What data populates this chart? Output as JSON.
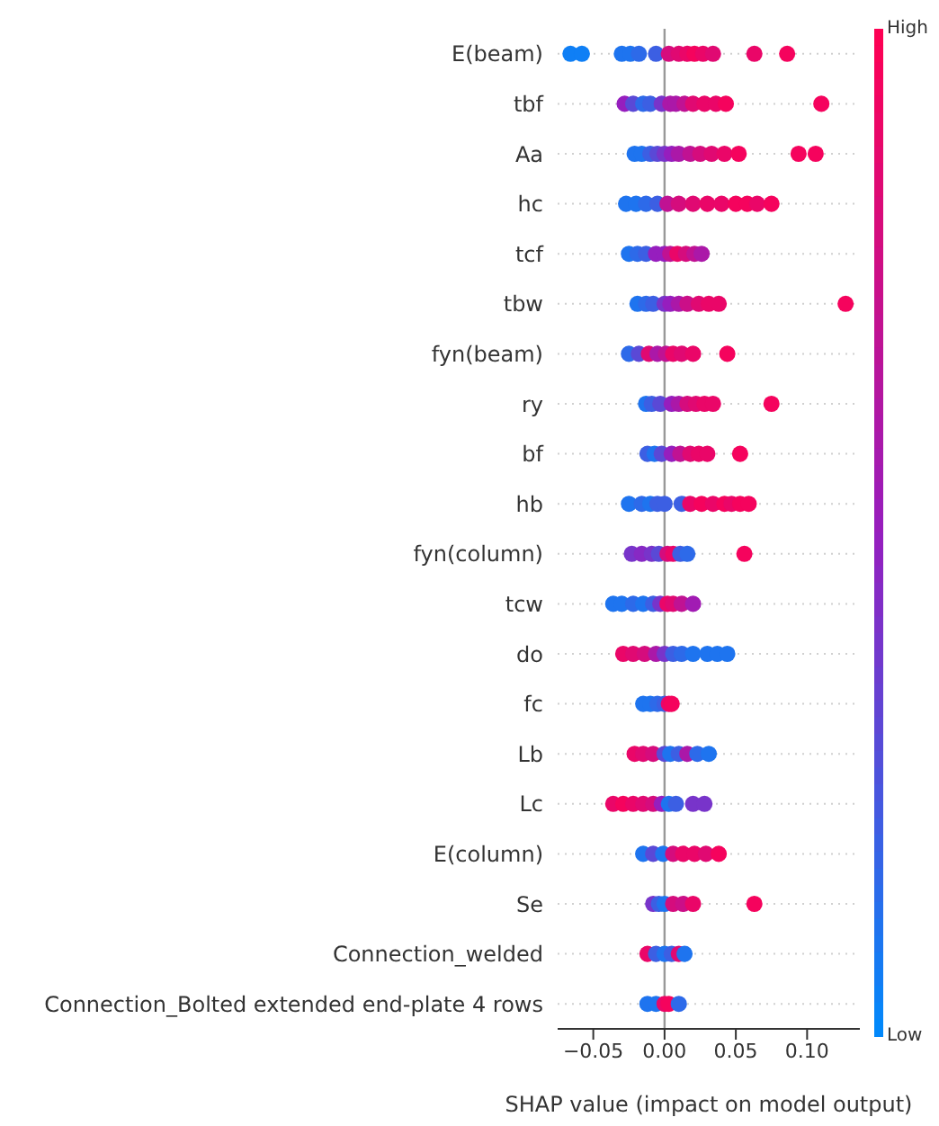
{
  "chart_data": {
    "type": "scatter",
    "orientation": "horizontal",
    "xlabel": "SHAP value (impact on model output)",
    "categories": [
      "E(beam)",
      "tbf",
      "Aa",
      "hc",
      "tcf",
      "tbw",
      "fyn(beam)",
      "ry",
      "bf",
      "hb",
      "fyn(column)",
      "tcw",
      "do",
      "fc",
      "Lb",
      "Lc",
      "E(column)",
      "Se",
      "Connection_welded",
      "Connection_Bolted extended end-plate 4 rows"
    ],
    "xlim": [
      -0.075,
      0.137
    ],
    "xticks": [
      {
        "value": -0.05,
        "label": "−0.05"
      },
      {
        "value": 0,
        "label": "0.00"
      },
      {
        "value": 0.05,
        "label": "0.05"
      },
      {
        "value": 0.1,
        "label": "0.10"
      }
    ],
    "clim": [
      0,
      1
    ],
    "cticks": [
      {
        "value": 0,
        "label": "Low"
      },
      {
        "value": 1,
        "label": "High"
      }
    ],
    "grid": "y",
    "marker": "circle",
    "ref_lines": [
      {
        "axis": "x",
        "value": 0,
        "color": "#999999"
      }
    ],
    "series": [
      {
        "x": [
          "E(beam)",
          "E(beam)",
          "E(beam)",
          "E(beam)",
          "E(beam)",
          "E(beam)",
          "E(beam)",
          "E(beam)",
          "E(beam)",
          "E(beam)",
          "E(beam)",
          "E(beam)",
          "E(beam)",
          "E(beam)",
          "tbf",
          "tbf",
          "tbf",
          "tbf",
          "tbf",
          "tbf",
          "tbf",
          "tbf",
          "tbf",
          "tbf",
          "tbf",
          "tbf",
          "tbf",
          "Aa",
          "Aa",
          "Aa",
          "Aa",
          "Aa",
          "Aa",
          "Aa",
          "Aa",
          "Aa",
          "Aa",
          "Aa",
          "Aa",
          "Aa",
          "Aa",
          "hc",
          "hc",
          "hc",
          "hc",
          "hc",
          "hc",
          "hc",
          "hc",
          "hc",
          "hc",
          "hc",
          "hc",
          "hc",
          "tcf",
          "tcf",
          "tcf",
          "tcf",
          "tcf",
          "tcf",
          "tcf",
          "tcf",
          "tcf",
          "tcf",
          "tbw",
          "tbw",
          "tbw",
          "tbw",
          "tbw",
          "tbw",
          "tbw",
          "tbw",
          "tbw",
          "tbw",
          "tbw",
          "fyn(beam)",
          "fyn(beam)",
          "fyn(beam)",
          "fyn(beam)",
          "fyn(beam)",
          "fyn(beam)",
          "fyn(beam)",
          "fyn(beam)",
          "fyn(beam)",
          "ry",
          "ry",
          "ry",
          "ry",
          "ry",
          "ry",
          "ry",
          "ry",
          "ry",
          "ry",
          "bf",
          "bf",
          "bf",
          "bf",
          "bf",
          "bf",
          "bf",
          "bf",
          "bf",
          "hb",
          "hb",
          "hb",
          "hb",
          "hb",
          "hb",
          "hb",
          "hb",
          "hb",
          "hb",
          "hb",
          "hb",
          "hb",
          "fyn(column)",
          "fyn(column)",
          "fyn(column)",
          "fyn(column)",
          "fyn(column)",
          "fyn(column)",
          "fyn(column)",
          "fyn(column)",
          "fyn(column)",
          "tcw",
          "tcw",
          "tcw",
          "tcw",
          "tcw",
          "tcw",
          "tcw",
          "tcw",
          "tcw",
          "tcw",
          "do",
          "do",
          "do",
          "do",
          "do",
          "do",
          "do",
          "do",
          "do",
          "do",
          "do",
          "fc",
          "fc",
          "fc",
          "fc",
          "fc",
          "fc",
          "Lb",
          "Lb",
          "Lb",
          "Lb",
          "Lb",
          "Lb",
          "Lb",
          "Lb",
          "Lb",
          "Lc",
          "Lc",
          "Lc",
          "Lc",
          "Lc",
          "Lc",
          "Lc",
          "Lc",
          "Lc",
          "Lc",
          "E(column)",
          "E(column)",
          "E(column)",
          "E(column)",
          "E(column)",
          "E(column)",
          "E(column)",
          "E(column)",
          "Se",
          "Se",
          "Se",
          "Se",
          "Se",
          "Se",
          "Se",
          "Connection_welded",
          "Connection_welded",
          "Connection_welded",
          "Connection_welded",
          "Connection_welded",
          "Connection_welded",
          "Connection_Bolted extended end-plate 4 rows",
          "Connection_Bolted extended end-plate 4 rows",
          "Connection_Bolted extended end-plate 4 rows",
          "Connection_Bolted extended end-plate 4 rows",
          "Connection_Bolted extended end-plate 4 rows"
        ],
        "values": [
          -0.066,
          -0.058,
          -0.03,
          -0.024,
          -0.018,
          -0.006,
          0.003,
          0.01,
          0.016,
          0.021,
          0.027,
          0.034,
          0.063,
          0.086,
          -0.028,
          -0.022,
          -0.015,
          -0.01,
          -0.002,
          0.004,
          0.008,
          0.014,
          0.02,
          0.028,
          0.036,
          0.043,
          0.11,
          -0.021,
          -0.016,
          -0.01,
          -0.005,
          0,
          0.005,
          0.01,
          0.018,
          0.025,
          0.033,
          0.042,
          0.052,
          0.094,
          0.106,
          -0.027,
          -0.02,
          -0.013,
          -0.005,
          0.002,
          0.01,
          0.02,
          0.03,
          0.04,
          0.05,
          0.058,
          0.065,
          0.075,
          -0.025,
          -0.019,
          -0.013,
          -0.006,
          0,
          0.004,
          0.009,
          0.015,
          0.021,
          0.026,
          -0.019,
          -0.013,
          -0.008,
          0,
          0.004,
          0.01,
          0.016,
          0.024,
          0.031,
          0.038,
          0.127,
          -0.025,
          -0.018,
          -0.011,
          -0.005,
          0.001,
          0.006,
          0.012,
          0.02,
          0.044,
          -0.013,
          -0.009,
          -0.003,
          0.005,
          0.01,
          0.016,
          0.022,
          0.028,
          0.034,
          0.075,
          -0.012,
          -0.007,
          -0.002,
          0.005,
          0.011,
          0.018,
          0.024,
          0.03,
          0.053,
          -0.025,
          -0.016,
          -0.01,
          -0.005,
          0,
          0.012,
          0.018,
          0.026,
          0.034,
          0.042,
          0.047,
          0.053,
          0.059,
          -0.023,
          -0.016,
          -0.009,
          -0.004,
          0.002,
          0.006,
          0.011,
          0.016,
          0.056,
          -0.036,
          -0.03,
          -0.022,
          -0.015,
          -0.008,
          -0.003,
          0.002,
          0.006,
          0.012,
          0.02,
          -0.029,
          -0.022,
          -0.014,
          -0.006,
          0,
          0.006,
          0.012,
          0.02,
          0.03,
          0.037,
          0.044,
          -0.015,
          -0.01,
          -0.005,
          0,
          0.003,
          0.005,
          -0.021,
          -0.015,
          -0.008,
          0,
          0.004,
          0.01,
          0.016,
          0.023,
          0.031,
          -0.036,
          -0.029,
          -0.022,
          -0.015,
          -0.008,
          -0.002,
          0.003,
          0.008,
          0.02,
          0.028,
          -0.015,
          -0.008,
          -0.001,
          0.006,
          0.013,
          0.021,
          0.029,
          0.038,
          -0.008,
          -0.004,
          0,
          0.006,
          0.013,
          0.02,
          0.063,
          -0.012,
          -0.006,
          0,
          0.005,
          0.01,
          0.014,
          -0.012,
          -0.006,
          0,
          0.003,
          0.01
        ],
        "cvalues": [
          0.05,
          0.05,
          0.1,
          0.1,
          0.15,
          0.2,
          0.8,
          0.85,
          0.9,
          0.95,
          0.9,
          0.85,
          0.9,
          0.95,
          0.5,
          0.3,
          0.15,
          0.2,
          0.4,
          0.6,
          0.6,
          0.7,
          0.85,
          0.9,
          0.9,
          0.95,
          0.95,
          0.1,
          0.1,
          0.2,
          0.3,
          0.4,
          0.5,
          0.6,
          0.7,
          0.8,
          0.85,
          0.9,
          0.95,
          0.95,
          0.95,
          0.1,
          0.1,
          0.15,
          0.2,
          0.7,
          0.8,
          0.85,
          0.9,
          0.9,
          0.95,
          0.95,
          0.9,
          0.95,
          0.1,
          0.15,
          0.2,
          0.5,
          0.5,
          0.7,
          0.9,
          0.8,
          0.7,
          0.6,
          0.1,
          0.15,
          0.2,
          0.4,
          0.5,
          0.6,
          0.75,
          0.85,
          0.9,
          0.9,
          0.95,
          0.15,
          0.3,
          0.85,
          0.6,
          0.7,
          0.9,
          0.85,
          0.9,
          0.95,
          0.1,
          0.2,
          0.3,
          0.5,
          0.6,
          0.8,
          0.85,
          0.9,
          0.9,
          0.95,
          0.2,
          0.1,
          0.3,
          0.5,
          0.7,
          0.85,
          0.9,
          0.9,
          0.95,
          0.1,
          0.15,
          0.1,
          0.2,
          0.2,
          0.2,
          0.9,
          0.95,
          0.9,
          0.95,
          0.9,
          0.95,
          0.95,
          0.4,
          0.45,
          0.4,
          0.3,
          0.8,
          0.9,
          0.2,
          0.15,
          0.95,
          0.1,
          0.1,
          0.15,
          0.1,
          0.2,
          0.4,
          0.9,
          0.85,
          0.7,
          0.55,
          0.9,
          0.85,
          0.8,
          0.6,
          0.4,
          0.2,
          0.15,
          0.1,
          0.1,
          0.1,
          0.1,
          0.1,
          0.1,
          0.15,
          0.2,
          0.9,
          0.95,
          0.9,
          0.85,
          0.8,
          0.3,
          0.1,
          0.2,
          0.6,
          0.15,
          0.1,
          0.9,
          0.95,
          0.9,
          0.85,
          0.8,
          0.5,
          0.1,
          0.2,
          0.4,
          0.4,
          0.1,
          0.3,
          0.1,
          0.8,
          0.9,
          0.9,
          0.85,
          0.95,
          0.4,
          0.2,
          0.1,
          0.8,
          0.75,
          0.9,
          0.95,
          0.9,
          0.2,
          0.1,
          0.2,
          0.85,
          0.1,
          0.1,
          0.1,
          0.9,
          0.95,
          0.15
        ]
      }
    ]
  }
}
